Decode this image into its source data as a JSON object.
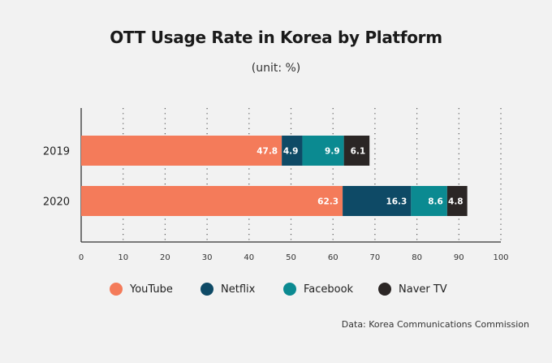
{
  "title": "OTT Usage Rate in Korea by Platform",
  "subtitle": "(unit: %)",
  "source": "Data: Korea Communications Commission",
  "chart_data": {
    "type": "bar",
    "orientation": "horizontal",
    "stacked": true,
    "categories": [
      "2019",
      "2020"
    ],
    "series": [
      {
        "name": "YouTube",
        "color": "#f47b5a",
        "values": [
          47.8,
          62.3
        ]
      },
      {
        "name": "Netflix",
        "color": "#0e4a66",
        "values": [
          4.9,
          16.3
        ]
      },
      {
        "name": "Facebook",
        "color": "#0b8a91",
        "values": [
          9.9,
          8.6
        ]
      },
      {
        "name": "Naver TV",
        "color": "#2b2625",
        "values": [
          6.1,
          4.8
        ]
      }
    ],
    "xlim": [
      0,
      100
    ],
    "xticks": [
      0,
      10,
      20,
      30,
      40,
      50,
      60,
      70,
      80,
      90,
      100
    ],
    "grid": "vertical-dotted",
    "legend": "bottom"
  }
}
